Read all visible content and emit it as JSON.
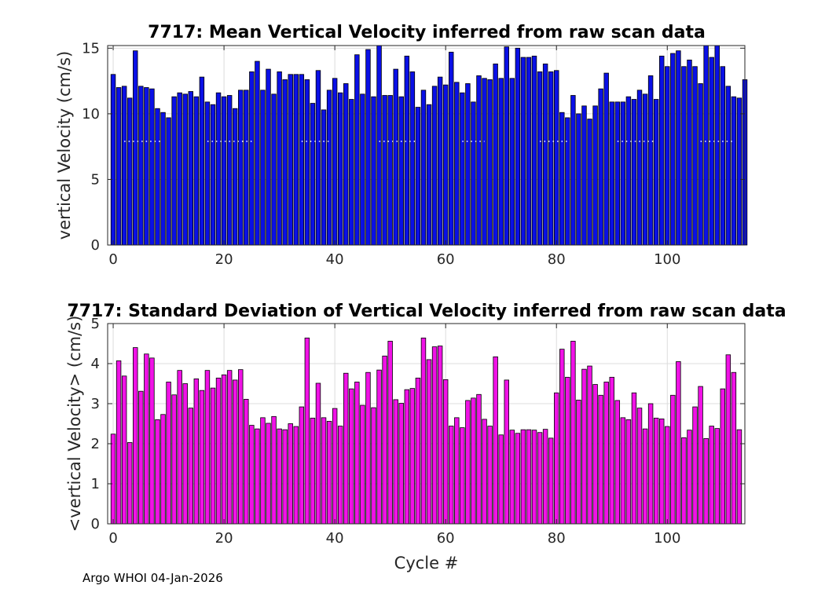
{
  "footer": "Argo WHOI 04-Jan-2026",
  "colors": {
    "top_bar": "#0a10e6",
    "bottom_bar": "#f012e6",
    "grid": "#dcdcdc",
    "axis": "#262626",
    "dots": "#ffffff"
  },
  "chart_data": [
    {
      "type": "bar",
      "title": "7717: Mean Vertical Velocity inferred from raw scan data",
      "xlabel": "",
      "ylabel": "vertical Velocity (cm/s)",
      "xlim": [
        -1,
        114
      ],
      "ylim": [
        0,
        15.2
      ],
      "xticks": [
        0,
        20,
        40,
        60,
        80,
        100
      ],
      "yticks": [
        0,
        5,
        10,
        15
      ],
      "x_start": 0,
      "values": [
        13.0,
        12.0,
        12.1,
        11.2,
        14.8,
        12.1,
        12.0,
        11.9,
        10.4,
        10.1,
        9.7,
        11.3,
        11.6,
        11.5,
        11.7,
        11.3,
        12.8,
        10.9,
        10.7,
        11.6,
        11.3,
        11.4,
        10.4,
        11.8,
        11.8,
        13.2,
        14.0,
        11.8,
        13.4,
        11.5,
        13.2,
        12.6,
        13.0,
        13.0,
        13.0,
        12.6,
        10.8,
        13.3,
        10.3,
        11.8,
        12.7,
        11.6,
        12.3,
        11.1,
        14.5,
        11.5,
        14.9,
        11.3,
        15.2,
        11.4,
        11.4,
        13.4,
        11.3,
        14.4,
        13.2,
        10.5,
        11.8,
        10.7,
        12.1,
        12.8,
        12.2,
        14.7,
        12.4,
        11.6,
        12.3,
        10.9,
        12.9,
        12.7,
        12.6,
        13.8,
        12.7,
        15.1,
        12.7,
        15.0,
        14.3,
        14.3,
        14.4,
        13.2,
        13.8,
        13.2,
        13.3,
        10.1,
        9.7,
        11.4,
        10.0,
        10.6,
        9.6,
        10.6,
        11.9,
        13.1,
        10.9,
        10.9,
        10.9,
        11.3,
        11.1,
        11.8,
        11.5,
        12.9,
        11.1,
        14.4,
        13.6,
        14.6,
        14.8,
        13.6,
        14.1,
        13.6,
        12.3,
        15.2,
        14.3,
        15.2,
        13.6,
        12.1,
        11.3,
        11.2,
        12.6
      ],
      "dotted_line": {
        "y": 7.9,
        "segments": [
          [
            2,
            9
          ],
          [
            17,
            25
          ],
          [
            34,
            39
          ],
          [
            48,
            55
          ],
          [
            63,
            67
          ],
          [
            77,
            82
          ],
          [
            91,
            98
          ],
          [
            106,
            112
          ]
        ]
      }
    },
    {
      "type": "bar",
      "title": "7717: Standard Deviation of Vertical Velocity inferred from raw scan data",
      "xlabel": "Cycle #",
      "ylabel": "<vertical Velocity> (cm/s)",
      "xlim": [
        -1,
        114
      ],
      "ylim": [
        0,
        5
      ],
      "xticks": [
        0,
        20,
        40,
        60,
        80,
        100
      ],
      "yticks": [
        0,
        1,
        2,
        3,
        4,
        5
      ],
      "x_start": 0,
      "values": [
        2.24,
        4.07,
        3.69,
        2.03,
        4.4,
        3.31,
        4.24,
        4.14,
        2.6,
        2.73,
        3.54,
        3.22,
        3.83,
        3.5,
        2.89,
        3.62,
        3.33,
        3.83,
        3.39,
        3.64,
        3.72,
        3.83,
        3.59,
        3.85,
        3.11,
        2.46,
        2.37,
        2.65,
        2.51,
        2.68,
        2.37,
        2.35,
        2.5,
        2.43,
        2.92,
        4.64,
        2.64,
        3.51,
        2.65,
        2.56,
        2.88,
        2.44,
        3.76,
        3.37,
        3.54,
        2.96,
        3.78,
        2.9,
        3.84,
        4.19,
        4.56,
        3.1,
        3.01,
        3.35,
        3.38,
        3.64,
        4.64,
        4.1,
        4.42,
        4.44,
        3.6,
        2.44,
        2.65,
        2.4,
        3.08,
        3.14,
        3.23,
        2.61,
        2.44,
        4.17,
        2.22,
        3.59,
        2.34,
        2.26,
        2.35,
        2.35,
        2.34,
        2.28,
        2.36,
        2.14,
        3.27,
        4.36,
        3.66,
        4.56,
        3.09,
        3.86,
        3.94,
        3.48,
        3.21,
        3.54,
        3.66,
        3.08,
        2.65,
        2.6,
        3.27,
        2.89,
        2.37,
        3.0,
        2.64,
        2.62,
        2.43,
        3.21,
        4.05,
        2.15,
        2.34,
        2.92,
        3.43,
        2.13,
        2.44,
        2.38,
        3.37,
        4.22,
        3.78,
        2.35
      ]
    }
  ]
}
